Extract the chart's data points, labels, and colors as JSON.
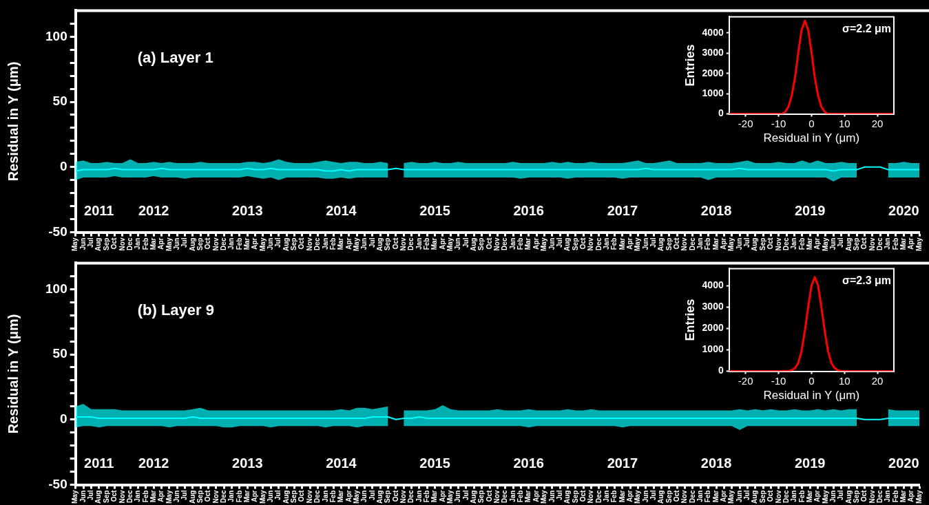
{
  "chart_data": [
    {
      "type": "line",
      "title": "(a) Layer 1",
      "ylabel": "Residual in Y (μm)",
      "marker": "none",
      "x": [
        "2011-05",
        "2011-06",
        "2011-07",
        "2011-08",
        "2011-09",
        "2011-10",
        "2011-11",
        "2011-12",
        "2012-01",
        "2012-02",
        "2012-03",
        "2012-04",
        "2012-05",
        "2012-06",
        "2012-07",
        "2012-08",
        "2012-09",
        "2012-10",
        "2012-11",
        "2012-12",
        "2013-01",
        "2013-02",
        "2013-03",
        "2013-04",
        "2013-05",
        "2013-06",
        "2013-07",
        "2013-08",
        "2013-09",
        "2013-10",
        "2013-11",
        "2013-12",
        "2014-01",
        "2014-02",
        "2014-03",
        "2014-04",
        "2014-05",
        "2014-06",
        "2014-07",
        "2014-08",
        "2014-09",
        "2014-10",
        "2014-11",
        "2014-12",
        "2015-01",
        "2015-02",
        "2015-03",
        "2015-04",
        "2015-05",
        "2015-06",
        "2015-07",
        "2015-08",
        "2015-09",
        "2015-10",
        "2015-11",
        "2015-12",
        "2016-01",
        "2016-02",
        "2016-03",
        "2016-04",
        "2016-05",
        "2016-06",
        "2016-07",
        "2016-08",
        "2016-09",
        "2016-10",
        "2016-11",
        "2016-12",
        "2017-01",
        "2017-02",
        "2017-03",
        "2017-04",
        "2017-05",
        "2017-06",
        "2017-07",
        "2017-08",
        "2017-09",
        "2017-10",
        "2017-11",
        "2017-12",
        "2018-01",
        "2018-02",
        "2018-03",
        "2018-04",
        "2018-05",
        "2018-06",
        "2018-07",
        "2018-08",
        "2018-09",
        "2018-10",
        "2018-11",
        "2018-12",
        "2019-01",
        "2019-02",
        "2019-03",
        "2019-04",
        "2019-05",
        "2019-06",
        "2019-07",
        "2019-08",
        "2019-09",
        "2019-10",
        "2019-11",
        "2019-12",
        "2020-01",
        "2020-02",
        "2020-03",
        "2020-04",
        "2020-05"
      ],
      "series": [
        {
          "color": "#00ffff",
          "values": [
            -3,
            -2,
            -2,
            -2,
            -2,
            -1,
            -2,
            -2,
            -2,
            -2,
            -2,
            -1,
            -2,
            -2,
            -2,
            -2,
            -2,
            -2,
            -2,
            -2,
            -2,
            -2,
            -1,
            -2,
            -2,
            -1,
            -2,
            -2,
            -2,
            -2,
            -2,
            -2,
            -3,
            -3,
            -2,
            -3,
            -2,
            -2,
            -2,
            -2,
            -2,
            -1,
            -2,
            -2,
            -2,
            -2,
            -2,
            -2,
            -2,
            -2,
            -2,
            -2,
            -2,
            -2,
            -2,
            -2,
            -2,
            -2,
            -2,
            -2,
            -2,
            -2,
            -2,
            -2,
            -2,
            -2,
            -2,
            -2,
            -2,
            -2,
            -2,
            -2,
            -2,
            -1,
            -2,
            -2,
            -2,
            -2,
            -2,
            -2,
            -2,
            -2,
            -2,
            -2,
            -2,
            -1,
            -2,
            -2,
            -2,
            -2,
            -2,
            -2,
            -2,
            -2,
            -2,
            -2,
            -2,
            -3,
            -2,
            -2,
            -2,
            0,
            0,
            0,
            -2,
            -2,
            -2,
            -2,
            -2
          ],
          "lower": [
            -10,
            -8,
            -8,
            -8,
            -8,
            -7,
            -8,
            -8,
            -8,
            -8,
            -7,
            -8,
            -8,
            -8,
            -9,
            -8,
            -8,
            -8,
            -8,
            -8,
            -8,
            -8,
            -7,
            -8,
            -9,
            -8,
            -10,
            -8,
            -8,
            -8,
            -8,
            -8,
            -9,
            -9,
            -8,
            -9,
            -8,
            -8,
            -8,
            -8,
            -8,
            null,
            -8,
            -8,
            -8,
            -8,
            -8,
            -8,
            -8,
            -8,
            -8,
            -8,
            -8,
            -8,
            -8,
            -8,
            -8,
            -9,
            -8,
            -8,
            -8,
            -8,
            -8,
            -9,
            -8,
            -8,
            -8,
            -8,
            -8,
            -8,
            -9,
            -8,
            -8,
            -8,
            -8,
            -8,
            -8,
            -8,
            -8,
            -8,
            -8,
            -10,
            -8,
            -8,
            -8,
            -8,
            -8,
            -8,
            -8,
            -8,
            -8,
            -8,
            -8,
            -8,
            -8,
            -8,
            -8,
            -11,
            -8,
            -8,
            -8,
            null,
            null,
            null,
            -8,
            -8,
            -8,
            -8,
            -8
          ],
          "upper": [
            4,
            5,
            3,
            3,
            4,
            3,
            3,
            6,
            3,
            3,
            4,
            3,
            4,
            3,
            3,
            3,
            4,
            3,
            3,
            3,
            3,
            3,
            4,
            4,
            3,
            4,
            6,
            4,
            3,
            3,
            3,
            4,
            5,
            4,
            3,
            4,
            4,
            3,
            3,
            4,
            3,
            null,
            3,
            4,
            3,
            3,
            4,
            3,
            3,
            4,
            3,
            3,
            3,
            3,
            3,
            3,
            4,
            3,
            3,
            3,
            3,
            4,
            3,
            4,
            3,
            3,
            4,
            3,
            3,
            3,
            3,
            4,
            5,
            3,
            3,
            4,
            5,
            3,
            3,
            3,
            3,
            4,
            3,
            3,
            3,
            4,
            5,
            3,
            3,
            3,
            4,
            3,
            3,
            5,
            3,
            5,
            3,
            3,
            4,
            3,
            3,
            null,
            null,
            null,
            3,
            3,
            4,
            3,
            3
          ]
        }
      ],
      "xlim": [
        "2011-05",
        "2020-05"
      ],
      "xticks": [
        {
          "value": "2011-05",
          "label": "May"
        },
        {
          "value": "2011-06",
          "label": "Jun"
        },
        {
          "value": "2011-07",
          "label": "Jul"
        },
        {
          "value": "2011-08",
          "label": "Aug"
        },
        {
          "value": "2011-09",
          "label": "Sep"
        },
        {
          "value": "2011-10",
          "label": "Oct"
        },
        {
          "value": "2011-11",
          "label": "Nov"
        },
        {
          "value": "2011-12",
          "label": "Dec"
        },
        {
          "value": "2012-01",
          "label": "Jan"
        },
        {
          "value": "2012-02",
          "label": "Feb"
        },
        {
          "value": "2012-03",
          "label": "Mar"
        },
        {
          "value": "2012-04",
          "label": "Apr"
        },
        {
          "value": "2012-05",
          "label": "May"
        },
        {
          "value": "2012-06",
          "label": "Jun"
        },
        {
          "value": "2012-07",
          "label": "Jul"
        },
        {
          "value": "2012-08",
          "label": "Aug"
        },
        {
          "value": "2012-09",
          "label": "Sep"
        },
        {
          "value": "2012-10",
          "label": "Oct"
        },
        {
          "value": "2012-11",
          "label": "Nov"
        },
        {
          "value": "2012-12",
          "label": "Dec"
        },
        {
          "value": "2013-01",
          "label": "Jan"
        },
        {
          "value": "2013-02",
          "label": "Feb"
        },
        {
          "value": "2013-03",
          "label": "Mar"
        },
        {
          "value": "2013-04",
          "label": "Apr"
        },
        {
          "value": "2013-05",
          "label": "May"
        },
        {
          "value": "2013-06",
          "label": "Jun"
        },
        {
          "value": "2013-07",
          "label": "Jul"
        },
        {
          "value": "2013-08",
          "label": "Aug"
        },
        {
          "value": "2013-09",
          "label": "Sep"
        },
        {
          "value": "2013-10",
          "label": "Oct"
        },
        {
          "value": "2013-11",
          "label": "Nov"
        },
        {
          "value": "2013-12",
          "label": "Dec"
        },
        {
          "value": "2014-01",
          "label": "Jan"
        },
        {
          "value": "2014-02",
          "label": "Feb"
        },
        {
          "value": "2014-03",
          "label": "Mar"
        },
        {
          "value": "2014-04",
          "label": "Apr"
        },
        {
          "value": "2014-05",
          "label": "May"
        },
        {
          "value": "2014-06",
          "label": "Jun"
        },
        {
          "value": "2014-07",
          "label": "Jul"
        },
        {
          "value": "2014-08",
          "label": "Aug"
        },
        {
          "value": "2014-09",
          "label": "Sep"
        },
        {
          "value": "2014-10",
          "label": "Oct"
        },
        {
          "value": "2014-11",
          "label": "Nov"
        },
        {
          "value": "2014-12",
          "label": "Dec"
        },
        {
          "value": "2015-01",
          "label": "Jan"
        },
        {
          "value": "2015-02",
          "label": "Feb"
        },
        {
          "value": "2015-03",
          "label": "Mar"
        },
        {
          "value": "2015-04",
          "label": "Apr"
        },
        {
          "value": "2015-05",
          "label": "May"
        },
        {
          "value": "2015-06",
          "label": "Jun"
        },
        {
          "value": "2015-07",
          "label": "Jul"
        },
        {
          "value": "2015-08",
          "label": "Aug"
        },
        {
          "value": "2015-09",
          "label": "Sep"
        },
        {
          "value": "2015-10",
          "label": "Oct"
        },
        {
          "value": "2015-11",
          "label": "Nov"
        },
        {
          "value": "2015-12",
          "label": "Dec"
        },
        {
          "value": "2016-01",
          "label": "Jan"
        },
        {
          "value": "2016-02",
          "label": "Feb"
        },
        {
          "value": "2016-03",
          "label": "Mar"
        },
        {
          "value": "2016-04",
          "label": "Apr"
        },
        {
          "value": "2016-05",
          "label": "May"
        },
        {
          "value": "2016-06",
          "label": "Jun"
        },
        {
          "value": "2016-07",
          "label": "Jul"
        },
        {
          "value": "2016-08",
          "label": "Aug"
        },
        {
          "value": "2016-09",
          "label": "Sep"
        },
        {
          "value": "2016-10",
          "label": "Oct"
        },
        {
          "value": "2016-11",
          "label": "Nov"
        },
        {
          "value": "2016-12",
          "label": "Dec"
        },
        {
          "value": "2017-01",
          "label": "Jan"
        },
        {
          "value": "2017-02",
          "label": "Feb"
        },
        {
          "value": "2017-03",
          "label": "Mar"
        },
        {
          "value": "2017-04",
          "label": "Apr"
        },
        {
          "value": "2017-05",
          "label": "May"
        },
        {
          "value": "2017-06",
          "label": "Jun"
        },
        {
          "value": "2017-07",
          "label": "Jul"
        },
        {
          "value": "2017-08",
          "label": "Aug"
        },
        {
          "value": "2017-09",
          "label": "Sep"
        },
        {
          "value": "2017-10",
          "label": "Oct"
        },
        {
          "value": "2017-11",
          "label": "Nov"
        },
        {
          "value": "2017-12",
          "label": "Dec"
        },
        {
          "value": "2018-01",
          "label": "Jan"
        },
        {
          "value": "2018-02",
          "label": "Feb"
        },
        {
          "value": "2018-03",
          "label": "Mar"
        },
        {
          "value": "2018-04",
          "label": "Apr"
        },
        {
          "value": "2018-05",
          "label": "May"
        },
        {
          "value": "2018-06",
          "label": "Jun"
        },
        {
          "value": "2018-07",
          "label": "Jul"
        },
        {
          "value": "2018-08",
          "label": "Aug"
        },
        {
          "value": "2018-09",
          "label": "Sep"
        },
        {
          "value": "2018-10",
          "label": "Oct"
        },
        {
          "value": "2018-11",
          "label": "Nov"
        },
        {
          "value": "2018-12",
          "label": "Dec"
        },
        {
          "value": "2019-01",
          "label": "Jan"
        },
        {
          "value": "2019-02",
          "label": "Feb"
        },
        {
          "value": "2019-03",
          "label": "Mar"
        },
        {
          "value": "2019-04",
          "label": "Apr"
        },
        {
          "value": "2019-05",
          "label": "May"
        },
        {
          "value": "2019-06",
          "label": "Jun"
        },
        {
          "value": "2019-07",
          "label": "Jul"
        },
        {
          "value": "2019-08",
          "label": "Aug"
        },
        {
          "value": "2019-09",
          "label": "Sep"
        },
        {
          "value": "2019-10",
          "label": "Oct"
        },
        {
          "value": "2019-11",
          "label": "Nov"
        },
        {
          "value": "2019-12",
          "label": "Dec"
        },
        {
          "value": "2020-01",
          "label": "Jan"
        },
        {
          "value": "2020-02",
          "label": "Feb"
        },
        {
          "value": "2020-03",
          "label": "Mar"
        },
        {
          "value": "2020-04",
          "label": "Apr"
        },
        {
          "value": "2020-05",
          "label": "May"
        }
      ],
      "ylim": [
        -50,
        120
      ],
      "yticks": [
        -50,
        {
          "value": -40,
          "label": null
        },
        {
          "value": -30,
          "label": null
        },
        {
          "value": -20,
          "label": null
        },
        {
          "value": -10,
          "label": null
        },
        0,
        {
          "value": 10,
          "label": null
        },
        {
          "value": 20,
          "label": null
        },
        {
          "value": 30,
          "label": null
        },
        {
          "value": 40,
          "label": null
        },
        50,
        {
          "value": 60,
          "label": null
        },
        {
          "value": 70,
          "label": null
        },
        {
          "value": 80,
          "label": null
        },
        {
          "value": 90,
          "label": null
        },
        100,
        {
          "value": 110,
          "label": null
        }
      ],
      "x2lim": [
        "2011-05",
        "2020-05"
      ],
      "x2ticks": [
        {
          "value": "2011-08",
          "label": "2011"
        },
        {
          "value": "2012-03",
          "label": "2012"
        },
        {
          "value": "2013-03",
          "label": "2013"
        },
        {
          "value": "2014-03",
          "label": "2014"
        },
        {
          "value": "2015-03",
          "label": "2015"
        },
        {
          "value": "2016-03",
          "label": "2016"
        },
        {
          "value": "2017-03",
          "label": "2017"
        },
        {
          "value": "2018-03",
          "label": "2018"
        },
        {
          "value": "2019-03",
          "label": "2019"
        },
        {
          "value": "2020-03",
          "label": "2020"
        }
      ]
    },
    {
      "type": "line",
      "xlabel": "Residual in Y (μm)",
      "ylabel": "Entries",
      "marker": "none",
      "x": [
        -25,
        -9,
        -8,
        -7,
        -6,
        -5,
        -4,
        -3,
        -2,
        -1,
        0,
        1,
        2,
        3,
        4,
        5,
        25
      ],
      "series": [
        {
          "color": "#ff0000",
          "values": [
            0,
            0,
            100,
            350,
            900,
            1800,
            3050,
            4150,
            4600,
            4150,
            3050,
            1800,
            900,
            350,
            100,
            0,
            0
          ]
        }
      ],
      "xlim": [
        -25,
        25
      ],
      "xticks": [
        -20,
        -10,
        0,
        10,
        20
      ],
      "ylim": [
        0,
        4800
      ],
      "yticks": [
        0,
        1000,
        2000,
        3000,
        4000
      ],
      "annotations": [
        "σ=2.2 μm"
      ]
    },
    {
      "type": "line",
      "title": "(b) Layer 9",
      "ylabel": "Residual in Y (μm)",
      "marker": "none",
      "x": [
        "2011-05",
        "2011-06",
        "2011-07",
        "2011-08",
        "2011-09",
        "2011-10",
        "2011-11",
        "2011-12",
        "2012-01",
        "2012-02",
        "2012-03",
        "2012-04",
        "2012-05",
        "2012-06",
        "2012-07",
        "2012-08",
        "2012-09",
        "2012-10",
        "2012-11",
        "2012-12",
        "2013-01",
        "2013-02",
        "2013-03",
        "2013-04",
        "2013-05",
        "2013-06",
        "2013-07",
        "2013-08",
        "2013-09",
        "2013-10",
        "2013-11",
        "2013-12",
        "2014-01",
        "2014-02",
        "2014-03",
        "2014-04",
        "2014-05",
        "2014-06",
        "2014-07",
        "2014-08",
        "2014-09",
        "2014-10",
        "2014-11",
        "2014-12",
        "2015-01",
        "2015-02",
        "2015-03",
        "2015-04",
        "2015-05",
        "2015-06",
        "2015-07",
        "2015-08",
        "2015-09",
        "2015-10",
        "2015-11",
        "2015-12",
        "2016-01",
        "2016-02",
        "2016-03",
        "2016-04",
        "2016-05",
        "2016-06",
        "2016-07",
        "2016-08",
        "2016-09",
        "2016-10",
        "2016-11",
        "2016-12",
        "2017-01",
        "2017-02",
        "2017-03",
        "2017-04",
        "2017-05",
        "2017-06",
        "2017-07",
        "2017-08",
        "2017-09",
        "2017-10",
        "2017-11",
        "2017-12",
        "2018-01",
        "2018-02",
        "2018-03",
        "2018-04",
        "2018-05",
        "2018-06",
        "2018-07",
        "2018-08",
        "2018-09",
        "2018-10",
        "2018-11",
        "2018-12",
        "2019-01",
        "2019-02",
        "2019-03",
        "2019-04",
        "2019-05",
        "2019-06",
        "2019-07",
        "2019-08",
        "2019-09",
        "2019-10",
        "2019-11",
        "2019-12",
        "2020-01",
        "2020-02",
        "2020-03",
        "2020-04",
        "2020-05"
      ],
      "series": [
        {
          "color": "#00ffff",
          "values": [
            2,
            2,
            2,
            1,
            1,
            1,
            1,
            1,
            1,
            1,
            1,
            1,
            1,
            1,
            1,
            2,
            1,
            1,
            1,
            1,
            1,
            1,
            1,
            1,
            1,
            1,
            1,
            1,
            1,
            1,
            1,
            1,
            1,
            1,
            1,
            1,
            1,
            1,
            2,
            2,
            2,
            0,
            1,
            1,
            2,
            1,
            1,
            1,
            1,
            1,
            1,
            1,
            1,
            1,
            1,
            1,
            1,
            1,
            1,
            1,
            1,
            1,
            1,
            1,
            1,
            1,
            1,
            1,
            1,
            1,
            1,
            1,
            1,
            1,
            1,
            1,
            1,
            1,
            1,
            1,
            1,
            1,
            1,
            1,
            1,
            1,
            1,
            1,
            1,
            1,
            1,
            1,
            1,
            1,
            1,
            1,
            1,
            1,
            1,
            1,
            1,
            0,
            0,
            0,
            1,
            1,
            1,
            1,
            1
          ],
          "lower": [
            -6,
            -5,
            -5,
            -6,
            -5,
            -5,
            -5,
            -5,
            -5,
            -5,
            -5,
            -5,
            -6,
            -5,
            -5,
            -5,
            -5,
            -5,
            -5,
            -6,
            -6,
            -5,
            -5,
            -5,
            -5,
            -6,
            -5,
            -5,
            -5,
            -5,
            -5,
            -5,
            -6,
            -5,
            -5,
            -5,
            -6,
            -5,
            -5,
            -5,
            -5,
            null,
            -5,
            -5,
            -5,
            -5,
            -5,
            -5,
            -5,
            -5,
            -5,
            -5,
            -5,
            -5,
            -5,
            -5,
            -5,
            -5,
            -6,
            -5,
            -5,
            -5,
            -5,
            -5,
            -5,
            -5,
            -5,
            -5,
            -5,
            -5,
            -6,
            -5,
            -5,
            -5,
            -5,
            -5,
            -5,
            -5,
            -5,
            -5,
            -5,
            -5,
            -5,
            -5,
            -5,
            -8,
            -5,
            -5,
            -5,
            -5,
            -5,
            -5,
            -5,
            -5,
            -5,
            -5,
            -5,
            -5,
            -5,
            -5,
            -5,
            null,
            null,
            null,
            -5,
            -5,
            -5,
            -5,
            -5
          ],
          "upper": [
            10,
            12,
            8,
            8,
            8,
            8,
            7,
            7,
            7,
            7,
            7,
            7,
            7,
            7,
            7,
            8,
            9,
            7,
            7,
            7,
            7,
            7,
            7,
            7,
            7,
            7,
            7,
            7,
            7,
            7,
            7,
            7,
            7,
            7,
            8,
            7,
            9,
            9,
            8,
            9,
            10,
            null,
            7,
            7,
            7,
            7,
            8,
            11,
            8,
            7,
            7,
            7,
            7,
            7,
            8,
            7,
            7,
            7,
            8,
            7,
            7,
            7,
            7,
            8,
            7,
            7,
            8,
            7,
            7,
            7,
            7,
            7,
            7,
            7,
            7,
            7,
            7,
            7,
            7,
            7,
            7,
            7,
            7,
            7,
            7,
            8,
            7,
            8,
            7,
            8,
            7,
            7,
            8,
            7,
            7,
            8,
            7,
            8,
            7,
            8,
            8,
            null,
            null,
            null,
            8,
            7,
            7,
            7,
            7
          ]
        }
      ],
      "xlim": [
        "2011-05",
        "2020-05"
      ],
      "xticks": [
        {
          "value": "2011-05",
          "label": "May"
        },
        {
          "value": "2011-06",
          "label": "Jun"
        },
        {
          "value": "2011-07",
          "label": "Jul"
        },
        {
          "value": "2011-08",
          "label": "Aug"
        },
        {
          "value": "2011-09",
          "label": "Sep"
        },
        {
          "value": "2011-10",
          "label": "Oct"
        },
        {
          "value": "2011-11",
          "label": "Nov"
        },
        {
          "value": "2011-12",
          "label": "Dec"
        },
        {
          "value": "2012-01",
          "label": "Jan"
        },
        {
          "value": "2012-02",
          "label": "Feb"
        },
        {
          "value": "2012-03",
          "label": "Mar"
        },
        {
          "value": "2012-04",
          "label": "Apr"
        },
        {
          "value": "2012-05",
          "label": "May"
        },
        {
          "value": "2012-06",
          "label": "Jun"
        },
        {
          "value": "2012-07",
          "label": "Jul"
        },
        {
          "value": "2012-08",
          "label": "Aug"
        },
        {
          "value": "2012-09",
          "label": "Sep"
        },
        {
          "value": "2012-10",
          "label": "Oct"
        },
        {
          "value": "2012-11",
          "label": "Nov"
        },
        {
          "value": "2012-12",
          "label": "Dec"
        },
        {
          "value": "2013-01",
          "label": "Jan"
        },
        {
          "value": "2013-02",
          "label": "Feb"
        },
        {
          "value": "2013-03",
          "label": "Mar"
        },
        {
          "value": "2013-04",
          "label": "Apr"
        },
        {
          "value": "2013-05",
          "label": "May"
        },
        {
          "value": "2013-06",
          "label": "Jun"
        },
        {
          "value": "2013-07",
          "label": "Jul"
        },
        {
          "value": "2013-08",
          "label": "Aug"
        },
        {
          "value": "2013-09",
          "label": "Sep"
        },
        {
          "value": "2013-10",
          "label": "Oct"
        },
        {
          "value": "2013-11",
          "label": "Nov"
        },
        {
          "value": "2013-12",
          "label": "Dec"
        },
        {
          "value": "2014-01",
          "label": "Jan"
        },
        {
          "value": "2014-02",
          "label": "Feb"
        },
        {
          "value": "2014-03",
          "label": "Mar"
        },
        {
          "value": "2014-04",
          "label": "Apr"
        },
        {
          "value": "2014-05",
          "label": "May"
        },
        {
          "value": "2014-06",
          "label": "Jun"
        },
        {
          "value": "2014-07",
          "label": "Jul"
        },
        {
          "value": "2014-08",
          "label": "Aug"
        },
        {
          "value": "2014-09",
          "label": "Sep"
        },
        {
          "value": "2014-10",
          "label": "Oct"
        },
        {
          "value": "2014-11",
          "label": "Nov"
        },
        {
          "value": "2014-12",
          "label": "Dec"
        },
        {
          "value": "2015-01",
          "label": "Jan"
        },
        {
          "value": "2015-02",
          "label": "Feb"
        },
        {
          "value": "2015-03",
          "label": "Mar"
        },
        {
          "value": "2015-04",
          "label": "Apr"
        },
        {
          "value": "2015-05",
          "label": "May"
        },
        {
          "value": "2015-06",
          "label": "Jun"
        },
        {
          "value": "2015-07",
          "label": "Jul"
        },
        {
          "value": "2015-08",
          "label": "Aug"
        },
        {
          "value": "2015-09",
          "label": "Sep"
        },
        {
          "value": "2015-10",
          "label": "Oct"
        },
        {
          "value": "2015-11",
          "label": "Nov"
        },
        {
          "value": "2015-12",
          "label": "Dec"
        },
        {
          "value": "2016-01",
          "label": "Jan"
        },
        {
          "value": "2016-02",
          "label": "Feb"
        },
        {
          "value": "2016-03",
          "label": "Mar"
        },
        {
          "value": "2016-04",
          "label": "Apr"
        },
        {
          "value": "2016-05",
          "label": "May"
        },
        {
          "value": "2016-06",
          "label": "Jun"
        },
        {
          "value": "2016-07",
          "label": "Jul"
        },
        {
          "value": "2016-08",
          "label": "Aug"
        },
        {
          "value": "2016-09",
          "label": "Sep"
        },
        {
          "value": "2016-10",
          "label": "Oct"
        },
        {
          "value": "2016-11",
          "label": "Nov"
        },
        {
          "value": "2016-12",
          "label": "Dec"
        },
        {
          "value": "2017-01",
          "label": "Jan"
        },
        {
          "value": "2017-02",
          "label": "Feb"
        },
        {
          "value": "2017-03",
          "label": "Mar"
        },
        {
          "value": "2017-04",
          "label": "Apr"
        },
        {
          "value": "2017-05",
          "label": "May"
        },
        {
          "value": "2017-06",
          "label": "Jun"
        },
        {
          "value": "2017-07",
          "label": "Jul"
        },
        {
          "value": "2017-08",
          "label": "Aug"
        },
        {
          "value": "2017-09",
          "label": "Sep"
        },
        {
          "value": "2017-10",
          "label": "Oct"
        },
        {
          "value": "2017-11",
          "label": "Nov"
        },
        {
          "value": "2017-12",
          "label": "Dec"
        },
        {
          "value": "2018-01",
          "label": "Jan"
        },
        {
          "value": "2018-02",
          "label": "Feb"
        },
        {
          "value": "2018-03",
          "label": "Mar"
        },
        {
          "value": "2018-04",
          "label": "Apr"
        },
        {
          "value": "2018-05",
          "label": "May"
        },
        {
          "value": "2018-06",
          "label": "Jun"
        },
        {
          "value": "2018-07",
          "label": "Jul"
        },
        {
          "value": "2018-08",
          "label": "Aug"
        },
        {
          "value": "2018-09",
          "label": "Sep"
        },
        {
          "value": "2018-10",
          "label": "Oct"
        },
        {
          "value": "2018-11",
          "label": "Nov"
        },
        {
          "value": "2018-12",
          "label": "Dec"
        },
        {
          "value": "2019-01",
          "label": "Jan"
        },
        {
          "value": "2019-02",
          "label": "Feb"
        },
        {
          "value": "2019-03",
          "label": "Mar"
        },
        {
          "value": "2019-04",
          "label": "Apr"
        },
        {
          "value": "2019-05",
          "label": "May"
        },
        {
          "value": "2019-06",
          "label": "Jun"
        },
        {
          "value": "2019-07",
          "label": "Jul"
        },
        {
          "value": "2019-08",
          "label": "Aug"
        },
        {
          "value": "2019-09",
          "label": "Sep"
        },
        {
          "value": "2019-10",
          "label": "Oct"
        },
        {
          "value": "2019-11",
          "label": "Nov"
        },
        {
          "value": "2019-12",
          "label": "Dec"
        },
        {
          "value": "2020-01",
          "label": "Jan"
        },
        {
          "value": "2020-02",
          "label": "Feb"
        },
        {
          "value": "2020-03",
          "label": "Mar"
        },
        {
          "value": "2020-04",
          "label": "Apr"
        },
        {
          "value": "2020-05",
          "label": "May"
        }
      ],
      "ylim": [
        -50,
        120
      ],
      "yticks": [
        -50,
        {
          "value": -40,
          "label": null
        },
        {
          "value": -30,
          "label": null
        },
        {
          "value": -20,
          "label": null
        },
        {
          "value": -10,
          "label": null
        },
        0,
        {
          "value": 10,
          "label": null
        },
        {
          "value": 20,
          "label": null
        },
        {
          "value": 30,
          "label": null
        },
        {
          "value": 40,
          "label": null
        },
        50,
        {
          "value": 60,
          "label": null
        },
        {
          "value": 70,
          "label": null
        },
        {
          "value": 80,
          "label": null
        },
        {
          "value": 90,
          "label": null
        },
        100,
        {
          "value": 110,
          "label": null
        }
      ],
      "x2lim": [
        "2011-05",
        "2020-05"
      ],
      "x2ticks": [
        {
          "value": "2011-08",
          "label": "2011"
        },
        {
          "value": "2012-03",
          "label": "2012"
        },
        {
          "value": "2013-03",
          "label": "2013"
        },
        {
          "value": "2014-03",
          "label": "2014"
        },
        {
          "value": "2015-03",
          "label": "2015"
        },
        {
          "value": "2016-03",
          "label": "2016"
        },
        {
          "value": "2017-03",
          "label": "2017"
        },
        {
          "value": "2018-03",
          "label": "2018"
        },
        {
          "value": "2019-03",
          "label": "2019"
        },
        {
          "value": "2020-03",
          "label": "2020"
        }
      ]
    },
    {
      "type": "line",
      "xlabel": "Residual in Y (μm)",
      "ylabel": "Entries",
      "marker": "none",
      "x": [
        -25,
        -7,
        -6,
        -5,
        -4,
        -3,
        -2,
        -1,
        0,
        1,
        2,
        3,
        4,
        5,
        6,
        7,
        8,
        9,
        25
      ],
      "series": [
        {
          "color": "#ff0000",
          "values": [
            0,
            0,
            50,
            150,
            400,
            950,
            1900,
            3000,
            4000,
            4400,
            4000,
            3000,
            1900,
            950,
            400,
            150,
            50,
            0,
            0
          ]
        }
      ],
      "xlim": [
        -25,
        25
      ],
      "xticks": [
        -20,
        -10,
        0,
        10,
        20
      ],
      "ylim": [
        0,
        4800
      ],
      "yticks": [
        0,
        1000,
        2000,
        3000,
        4000
      ],
      "annotations": [
        "σ=2.3 μm"
      ]
    }
  ]
}
